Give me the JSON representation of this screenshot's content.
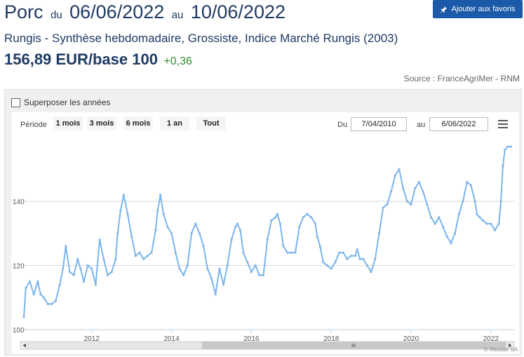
{
  "header": {
    "product": "Porc",
    "du_label": "du",
    "start_date": "06/06/2022",
    "au_label": "au",
    "end_date": "10/06/2022",
    "favorite_label": "Ajouter aux favoris",
    "subtitle": "Rungis - Synthèse hebdomadaire, Grossiste, Indice Marché Rungis (2003)",
    "price": "156,89 EUR/base 100",
    "change": "+0,36",
    "source": "Source : FranceAgriMer - RNM"
  },
  "controls": {
    "overlay_label": "Superposer les années",
    "period_label": "Période",
    "ranges": [
      "1 mois",
      "3 mois",
      "6 mois",
      "1 an",
      "Tout"
    ],
    "from_label": "Du",
    "from_value": "7/04/2010",
    "to_label": "au",
    "to_value": "6/06/2022"
  },
  "credit": "© Réussir SA",
  "colors": {
    "line": "#7cb5ec",
    "title": "#1f3a63",
    "accent": "#1a5aa8",
    "change": "#2e8b2e"
  },
  "chart_data": {
    "type": "line",
    "title": "",
    "xlabel": "",
    "ylabel": "",
    "x_ticks": [
      "2012",
      "2014",
      "2016",
      "2018",
      "2020",
      "2022"
    ],
    "y_ticks": [
      100,
      120,
      140
    ],
    "xlim": [
      2010.3,
      2022.6
    ],
    "ylim": [
      100,
      159
    ],
    "grid": "horizontal",
    "legend": "none",
    "series": [
      {
        "x": [
          2010.3,
          2010.35,
          2010.45,
          2010.55,
          2010.65,
          2010.72,
          2010.8,
          2010.9,
          2011.0,
          2011.1,
          2011.2,
          2011.28,
          2011.35,
          2011.45,
          2011.55,
          2011.65,
          2011.72,
          2011.8,
          2011.9,
          2012.0,
          2012.1,
          2012.2,
          2012.3,
          2012.4,
          2012.5,
          2012.6,
          2012.65,
          2012.72,
          2012.8,
          2012.9,
          2013.0,
          2013.1,
          2013.2,
          2013.3,
          2013.4,
          2013.5,
          2013.6,
          2013.65,
          2013.72,
          2013.8,
          2013.9,
          2014.0,
          2014.1,
          2014.2,
          2014.3,
          2014.4,
          2014.5,
          2014.6,
          2014.7,
          2014.8,
          2014.9,
          2015.0,
          2015.1,
          2015.2,
          2015.3,
          2015.4,
          2015.5,
          2015.6,
          2015.65,
          2015.72,
          2015.8,
          2015.9,
          2016.0,
          2016.1,
          2016.2,
          2016.3,
          2016.4,
          2016.5,
          2016.6,
          2016.65,
          2016.72,
          2016.8,
          2016.9,
          2017.0,
          2017.1,
          2017.2,
          2017.3,
          2017.4,
          2017.5,
          2017.6,
          2017.65,
          2017.72,
          2017.8,
          2017.9,
          2018.0,
          2018.1,
          2018.2,
          2018.3,
          2018.4,
          2018.5,
          2018.6,
          2018.65,
          2018.72,
          2018.8,
          2018.9,
          2019.0,
          2019.1,
          2019.2,
          2019.3,
          2019.4,
          2019.5,
          2019.6,
          2019.7,
          2019.8,
          2019.9,
          2020.0,
          2020.1,
          2020.2,
          2020.3,
          2020.4,
          2020.5,
          2020.6,
          2020.7,
          2020.8,
          2020.9,
          2021.0,
          2021.1,
          2021.2,
          2021.3,
          2021.4,
          2021.5,
          2021.6,
          2021.65,
          2021.72,
          2021.8,
          2021.9,
          2022.0,
          2022.1,
          2022.2,
          2022.25,
          2022.3,
          2022.35,
          2022.42,
          2022.5
        ],
        "y": [
          104,
          113,
          115,
          111,
          115,
          111,
          110,
          108,
          108,
          109,
          114,
          119,
          126,
          118,
          117,
          122,
          119,
          115,
          120,
          119,
          114,
          128,
          122,
          117,
          118,
          122,
          130,
          137,
          142,
          136,
          129,
          123,
          124,
          122,
          123,
          124,
          131,
          137,
          142,
          136,
          132,
          130,
          124,
          119,
          117,
          120,
          130,
          133,
          130,
          126,
          119,
          116,
          111,
          119,
          114,
          120,
          128,
          132,
          133,
          131,
          124,
          121,
          118,
          120,
          117,
          117,
          128,
          134,
          135,
          136,
          133,
          126,
          124,
          124,
          124,
          132,
          135,
          136,
          135,
          133,
          129,
          126,
          121,
          120,
          119,
          121,
          124,
          124,
          122,
          123,
          123,
          125,
          122,
          122,
          120,
          118,
          122,
          130,
          138,
          139,
          143,
          148,
          150,
          144,
          140,
          139,
          144,
          146,
          143,
          139,
          135,
          133,
          135,
          132,
          129,
          127,
          130,
          136,
          140,
          146,
          145,
          140,
          136,
          135,
          134,
          133,
          133,
          131,
          133,
          140,
          151,
          156,
          157,
          157
        ]
      }
    ]
  }
}
